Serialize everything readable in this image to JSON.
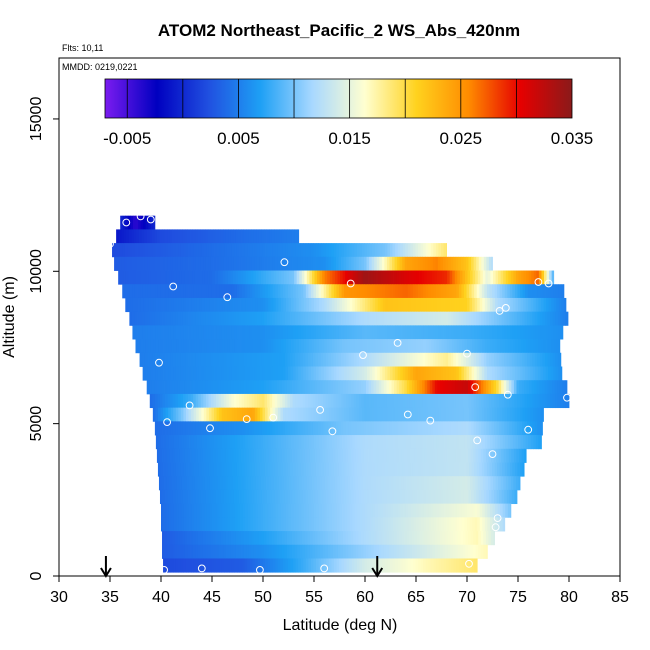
{
  "chart_data": {
    "type": "heatmap",
    "title": "ATOM2 Northeast_Pacific_2 WS_Abs_420nm",
    "flights_label": "Flts: 10,11",
    "dates_label": "MMDD: 0219,0221",
    "xlabel": "Latitude (deg N)",
    "ylabel": "Altitude (m)",
    "xlim": [
      30,
      85
    ],
    "ylim": [
      0,
      17000
    ],
    "x_ticks": [
      "30",
      "35",
      "40",
      "45",
      "50",
      "55",
      "60",
      "65",
      "70",
      "75",
      "80",
      "85"
    ],
    "y_ticks": [
      "0",
      "5000",
      "10000",
      "15000"
    ],
    "colorbar": {
      "range": [
        -0.007,
        0.035
      ],
      "tick_labels": [
        "-0.005",
        "0.005",
        "0.015",
        "0.025",
        "0.035"
      ],
      "tick_values": [
        -0.005,
        0.005,
        0.015,
        0.025,
        0.035
      ],
      "colors": [
        "#7b1cf0",
        "#0000c0",
        "#2050e0",
        "#1ea0f5",
        "#a8d8ff",
        "#ffffd0",
        "#ffd21e",
        "#ff8c00",
        "#e60000",
        "#8b1a1a"
      ]
    },
    "field_description": "Mostly blue (0.002-0.010) curtain with high values (0.025-0.035) near 9500-10000 m at 58-70 N and 6000-6500 m at 65-71 N; pale blue/yellow near surface at 60-72 N",
    "bands": [
      {
        "alt": 11600,
        "x0": 36.0,
        "x1": 39.4,
        "segments": [
          [
            36.0,
            0.0
          ],
          [
            37.5,
            -0.004
          ],
          [
            39.4,
            0.0
          ]
        ]
      },
      {
        "alt": 11150,
        "x0": 35.6,
        "x1": 53.5,
        "segments": [
          [
            35.6,
            -0.001
          ],
          [
            40.0,
            0.002
          ],
          [
            48.0,
            0.004
          ],
          [
            53.5,
            0.005
          ]
        ]
      },
      {
        "alt": 10700,
        "x0": 35.2,
        "x1": 68.0,
        "segments": [
          [
            35.2,
            0.002
          ],
          [
            45.0,
            0.004
          ],
          [
            55.0,
            0.006
          ],
          [
            62.0,
            0.01
          ],
          [
            66.0,
            0.016
          ],
          [
            68.0,
            0.019
          ]
        ]
      },
      {
        "alt": 10250,
        "x0": 35.4,
        "x1": 72.5,
        "segments": [
          [
            35.4,
            0.003
          ],
          [
            45.0,
            0.004
          ],
          [
            56.0,
            0.006
          ],
          [
            60.0,
            0.01
          ],
          [
            64.0,
            0.024
          ],
          [
            67.0,
            0.026
          ],
          [
            70.0,
            0.022
          ],
          [
            72.5,
            0.012
          ]
        ]
      },
      {
        "alt": 9800,
        "x0": 35.8,
        "x1": 78.5,
        "segments": [
          [
            35.8,
            0.003
          ],
          [
            45.0,
            0.004
          ],
          [
            53.0,
            0.01
          ],
          [
            56.0,
            0.026
          ],
          [
            60.0,
            0.034
          ],
          [
            64.0,
            0.031
          ],
          [
            68.0,
            0.029
          ],
          [
            72.0,
            0.015
          ],
          [
            75.0,
            0.024
          ],
          [
            77.0,
            0.027
          ],
          [
            78.5,
            0.008
          ]
        ]
      },
      {
        "alt": 9350,
        "x0": 36.2,
        "x1": 79.5,
        "segments": [
          [
            36.2,
            0.004
          ],
          [
            47.0,
            0.004
          ],
          [
            54.0,
            0.01
          ],
          [
            58.0,
            0.025
          ],
          [
            64.0,
            0.027
          ],
          [
            69.0,
            0.024
          ],
          [
            72.0,
            0.013
          ],
          [
            76.0,
            0.006
          ],
          [
            79.5,
            0.005
          ]
        ]
      },
      {
        "alt": 8900,
        "x0": 36.5,
        "x1": 79.7,
        "segments": [
          [
            36.5,
            0.004
          ],
          [
            50.0,
            0.006
          ],
          [
            56.0,
            0.012
          ],
          [
            62.0,
            0.022
          ],
          [
            70.0,
            0.021
          ],
          [
            73.0,
            0.012
          ],
          [
            79.7,
            0.005
          ]
        ]
      },
      {
        "alt": 8450,
        "x0": 36.9,
        "x1": 79.9,
        "segments": [
          [
            36.9,
            0.004
          ],
          [
            50.0,
            0.007
          ],
          [
            60.0,
            0.012
          ],
          [
            68.0,
            0.014
          ],
          [
            73.0,
            0.01
          ],
          [
            79.9,
            0.005
          ]
        ]
      },
      {
        "alt": 8000,
        "x0": 37.2,
        "x1": 79.4,
        "segments": [
          [
            37.2,
            0.005
          ],
          [
            50.0,
            0.006
          ],
          [
            60.0,
            0.009
          ],
          [
            70.0,
            0.008
          ],
          [
            79.4,
            0.006
          ]
        ]
      },
      {
        "alt": 7550,
        "x0": 37.5,
        "x1": 79.1,
        "segments": [
          [
            37.5,
            0.005
          ],
          [
            50.0,
            0.006
          ],
          [
            58.0,
            0.01
          ],
          [
            66.0,
            0.011
          ],
          [
            72.0,
            0.008
          ],
          [
            79.1,
            0.006
          ]
        ]
      },
      {
        "alt": 7100,
        "x0": 37.9,
        "x1": 79.2,
        "segments": [
          [
            37.9,
            0.005
          ],
          [
            52.0,
            0.007
          ],
          [
            60.0,
            0.012
          ],
          [
            68.0,
            0.018
          ],
          [
            72.0,
            0.011
          ],
          [
            79.2,
            0.006
          ]
        ]
      },
      {
        "alt": 6650,
        "x0": 38.2,
        "x1": 79.3,
        "segments": [
          [
            38.2,
            0.005
          ],
          [
            52.0,
            0.007
          ],
          [
            60.0,
            0.014
          ],
          [
            65.0,
            0.024
          ],
          [
            69.0,
            0.022
          ],
          [
            72.0,
            0.012
          ],
          [
            79.3,
            0.006
          ]
        ]
      },
      {
        "alt": 6200,
        "x0": 38.6,
        "x1": 79.8,
        "segments": [
          [
            38.6,
            0.005
          ],
          [
            50.0,
            0.007
          ],
          [
            60.0,
            0.011
          ],
          [
            64.0,
            0.02
          ],
          [
            67.0,
            0.03
          ],
          [
            70.0,
            0.032
          ],
          [
            73.0,
            0.02
          ],
          [
            75.0,
            0.008
          ],
          [
            79.8,
            0.005
          ]
        ]
      },
      {
        "alt": 5750,
        "x0": 38.9,
        "x1": 80.0,
        "segments": [
          [
            38.9,
            0.004
          ],
          [
            43.0,
            0.008
          ],
          [
            47.0,
            0.016
          ],
          [
            50.0,
            0.019
          ],
          [
            53.0,
            0.012
          ],
          [
            60.0,
            0.009
          ],
          [
            70.0,
            0.01
          ],
          [
            80.0,
            0.005
          ]
        ]
      },
      {
        "alt": 5300,
        "x0": 39.2,
        "x1": 77.5,
        "segments": [
          [
            39.2,
            0.004
          ],
          [
            42.0,
            0.01
          ],
          [
            46.0,
            0.022
          ],
          [
            49.0,
            0.024
          ],
          [
            52.0,
            0.012
          ],
          [
            60.0,
            0.009
          ],
          [
            70.0,
            0.01
          ],
          [
            77.5,
            0.006
          ]
        ]
      },
      {
        "alt": 4850,
        "x0": 39.4,
        "x1": 77.4,
        "segments": [
          [
            39.4,
            0.004
          ],
          [
            48.0,
            0.006
          ],
          [
            58.0,
            0.01
          ],
          [
            70.0,
            0.012
          ],
          [
            77.4,
            0.006
          ]
        ]
      },
      {
        "alt": 4400,
        "x0": 39.5,
        "x1": 77.3,
        "segments": [
          [
            39.5,
            0.004
          ],
          [
            50.0,
            0.008
          ],
          [
            60.0,
            0.012
          ],
          [
            70.0,
            0.013
          ],
          [
            77.3,
            0.007
          ]
        ]
      },
      {
        "alt": 3950,
        "x0": 39.6,
        "x1": 75.8,
        "segments": [
          [
            39.6,
            0.004
          ],
          [
            50.0,
            0.008
          ],
          [
            60.0,
            0.012
          ],
          [
            70.0,
            0.013
          ],
          [
            75.8,
            0.007
          ]
        ]
      },
      {
        "alt": 3500,
        "x0": 39.7,
        "x1": 75.6,
        "segments": [
          [
            39.7,
            0.004
          ],
          [
            50.0,
            0.008
          ],
          [
            60.0,
            0.012
          ],
          [
            70.0,
            0.013
          ],
          [
            75.6,
            0.007
          ]
        ]
      },
      {
        "alt": 3050,
        "x0": 39.8,
        "x1": 75.2,
        "segments": [
          [
            39.8,
            0.004
          ],
          [
            50.0,
            0.008
          ],
          [
            60.0,
            0.012
          ],
          [
            70.0,
            0.014
          ],
          [
            75.2,
            0.008
          ]
        ]
      },
      {
        "alt": 2600,
        "x0": 39.9,
        "x1": 74.9,
        "segments": [
          [
            39.9,
            0.004
          ],
          [
            50.0,
            0.008
          ],
          [
            60.0,
            0.012
          ],
          [
            70.0,
            0.014
          ],
          [
            74.9,
            0.008
          ]
        ]
      },
      {
        "alt": 2150,
        "x0": 40.0,
        "x1": 74.3,
        "segments": [
          [
            40.0,
            0.004
          ],
          [
            50.0,
            0.008
          ],
          [
            60.0,
            0.012
          ],
          [
            71.0,
            0.016
          ],
          [
            74.3,
            0.01
          ]
        ]
      },
      {
        "alt": 1700,
        "x0": 40.0,
        "x1": 73.7,
        "segments": [
          [
            40.0,
            0.004
          ],
          [
            50.0,
            0.008
          ],
          [
            60.0,
            0.012
          ],
          [
            71.0,
            0.017
          ],
          [
            73.7,
            0.012
          ]
        ]
      },
      {
        "alt": 1250,
        "x0": 40.1,
        "x1": 72.7,
        "segments": [
          [
            40.1,
            0.003
          ],
          [
            50.0,
            0.007
          ],
          [
            60.0,
            0.012
          ],
          [
            71.0,
            0.017
          ],
          [
            72.7,
            0.014
          ]
        ]
      },
      {
        "alt": 800,
        "x0": 40.1,
        "x1": 72.0,
        "segments": [
          [
            40.1,
            0.003
          ],
          [
            50.0,
            0.006
          ],
          [
            58.0,
            0.01
          ],
          [
            66.0,
            0.014
          ],
          [
            72.0,
            0.017
          ]
        ]
      },
      {
        "alt": 350,
        "x0": 40.2,
        "x1": 71.0,
        "segments": [
          [
            40.2,
            0.002
          ],
          [
            48.0,
            0.003
          ],
          [
            54.0,
            0.008
          ],
          [
            60.0,
            0.014
          ],
          [
            66.0,
            0.017
          ],
          [
            71.0,
            0.019
          ]
        ]
      }
    ],
    "sample_points": [
      [
        36.6,
        11600
      ],
      [
        38.0,
        11800
      ],
      [
        39.0,
        11700
      ],
      [
        35.0,
        10900
      ],
      [
        52.1,
        10300
      ],
      [
        41.2,
        9500
      ],
      [
        46.5,
        9150
      ],
      [
        58.6,
        9600
      ],
      [
        77.0,
        9650
      ],
      [
        78.0,
        9600
      ],
      [
        73.8,
        8800
      ],
      [
        73.2,
        8700
      ],
      [
        63.2,
        7650
      ],
      [
        59.8,
        7250
      ],
      [
        70.0,
        7300
      ],
      [
        39.8,
        7000
      ],
      [
        70.8,
        6200
      ],
      [
        74.0,
        5950
      ],
      [
        79.8,
        5850
      ],
      [
        42.8,
        5600
      ],
      [
        55.6,
        5450
      ],
      [
        40.6,
        5050
      ],
      [
        48.4,
        5150
      ],
      [
        51.0,
        5200
      ],
      [
        64.2,
        5300
      ],
      [
        66.4,
        5100
      ],
      [
        44.8,
        4850
      ],
      [
        56.8,
        4750
      ],
      [
        76.0,
        4800
      ],
      [
        71.0,
        4450
      ],
      [
        72.5,
        4000
      ],
      [
        73.0,
        1900
      ],
      [
        72.8,
        1600
      ],
      [
        40.3,
        200
      ],
      [
        44.0,
        250
      ],
      [
        49.7,
        200
      ],
      [
        56.0,
        250
      ],
      [
        70.2,
        400
      ]
    ],
    "arrows_lat": [
      34.6,
      61.2
    ]
  }
}
